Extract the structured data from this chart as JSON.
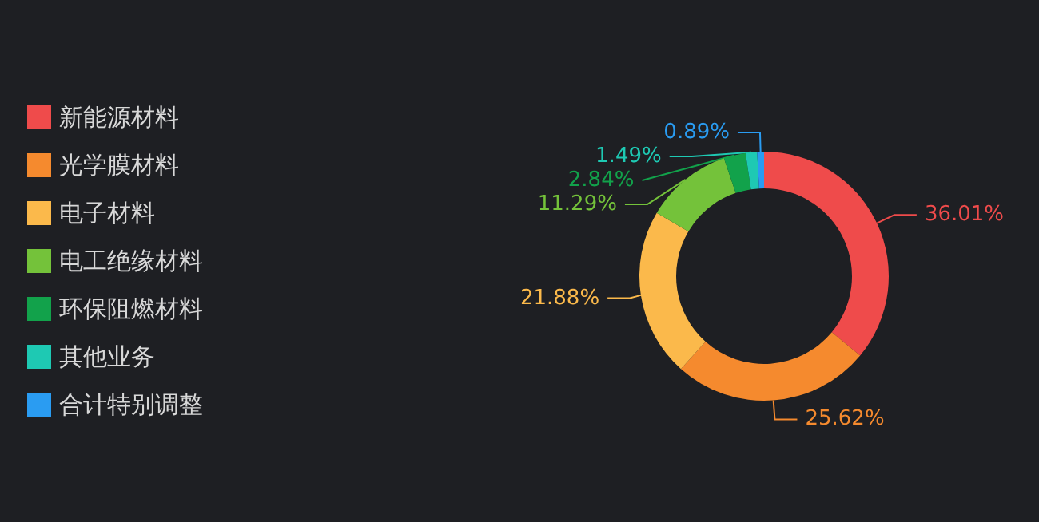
{
  "chart_data": {
    "type": "donut",
    "categories": [
      "新能源材料",
      "光学膜材料",
      "电子材料",
      "电工绝缘材料",
      "环保阻燃材料",
      "其他业务",
      "合计特别调整"
    ],
    "values": [
      36.01,
      25.62,
      21.88,
      11.29,
      2.84,
      1.49,
      0.89
    ],
    "value_labels": [
      "36.01%",
      "25.62%",
      "21.88%",
      "11.29%",
      "2.84%",
      "1.49%",
      "0.89%"
    ],
    "colors": [
      "#ef4b4b",
      "#f58a2e",
      "#fbb94b",
      "#74c23a",
      "#12a24b",
      "#1ec9b3",
      "#2a9cf2"
    ],
    "legend": "left"
  }
}
